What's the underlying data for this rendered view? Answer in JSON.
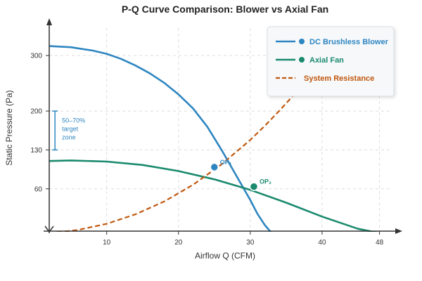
{
  "chart_data": {
    "type": "line",
    "title": "P-Q Curve Comparison: Blower vs Axial Fan",
    "xlabel": "Airflow Q (CFM)",
    "ylabel": "Static Pressure (Pa)",
    "xlim": [
      2,
      50
    ],
    "ylim": [
      -20,
      362
    ],
    "x_ticks": [
      10,
      20,
      30,
      40,
      48
    ],
    "y_ticks": [
      60,
      130,
      200,
      300
    ],
    "grid": true,
    "legend_position": "top-right",
    "series": [
      {
        "name": "DC Brushless Blower",
        "color": "#2e86c1",
        "style": "solid",
        "x": [
          2,
          5,
          8,
          10,
          12,
          14,
          16,
          18,
          20,
          22,
          24,
          26,
          28,
          30,
          31,
          32,
          33,
          34
        ],
        "y": [
          317,
          315,
          309,
          303,
          294,
          282,
          268,
          251,
          230,
          205,
          172,
          130,
          85,
          40,
          15,
          -5,
          -20,
          -30
        ]
      },
      {
        "name": "Axial Fan",
        "color": "#1a8a6e",
        "style": "solid",
        "x": [
          2,
          5,
          10,
          15,
          20,
          25,
          30,
          35,
          40,
          45,
          48.5
        ],
        "y": [
          110,
          111,
          109,
          103,
          92,
          77,
          58,
          35,
          10,
          -12,
          -21
        ]
      },
      {
        "name": "System Resistance",
        "color": "#c0580f",
        "style": "dashed",
        "x": [
          2,
          6,
          10,
          14,
          18,
          22,
          26,
          30,
          32,
          34,
          35.5,
          37,
          38
        ],
        "y": [
          -20,
          -14,
          -3,
          14,
          37,
          67,
          104,
          148,
          173,
          200,
          221,
          243,
          258
        ]
      }
    ],
    "points": [
      {
        "label": "OP₁",
        "x": 25,
        "y": 99,
        "color": "#2e86c1"
      },
      {
        "label": "OP₂",
        "x": 30.5,
        "y": 64,
        "color": "#1a8a6e"
      }
    ],
    "annotations": [
      {
        "text_lines": [
          "50–70%",
          "target",
          "zone"
        ],
        "x": 2.8,
        "y_range": [
          130,
          200
        ],
        "color": "#2e86c1"
      }
    ]
  }
}
